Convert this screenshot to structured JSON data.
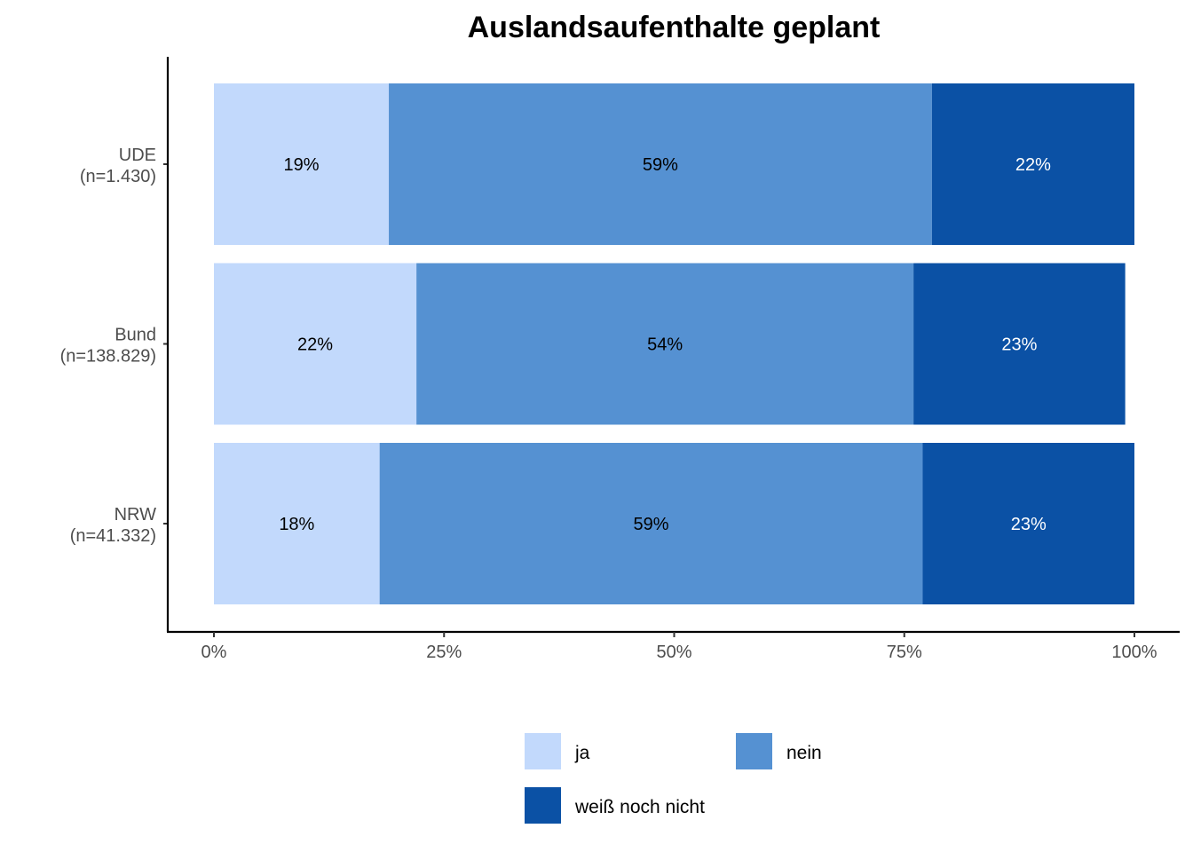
{
  "chart_data": {
    "type": "bar",
    "orientation": "horizontal",
    "stacked": true,
    "percent": true,
    "title": "Auslandsaufenthalte geplant",
    "categories": [
      {
        "name": "UDE",
        "n_label": "(n=1.430)"
      },
      {
        "name": "Bund",
        "n_label": "(n=138.829)"
      },
      {
        "name": "NRW",
        "n_label": "(n=41.332)"
      }
    ],
    "series": [
      {
        "name": "ja",
        "color": "#c2d9fc",
        "label_color": "#000000",
        "values": [
          19,
          22,
          18
        ],
        "labels": [
          "19%",
          "22%",
          "18%"
        ]
      },
      {
        "name": "nein",
        "color": "#5591d2",
        "label_color": "#000000",
        "values": [
          59,
          54,
          59
        ],
        "labels": [
          "59%",
          "54%",
          "59%"
        ]
      },
      {
        "name": "weiß noch nicht",
        "color": "#0b51a5",
        "label_color": "#ffffff",
        "values": [
          22,
          23,
          23
        ],
        "labels": [
          "22%",
          "23%",
          "23%"
        ]
      }
    ],
    "xticks": [
      "0%",
      "25%",
      "50%",
      "75%",
      "100%"
    ],
    "xlim": [
      0,
      100
    ],
    "legend_position": "bottom"
  }
}
